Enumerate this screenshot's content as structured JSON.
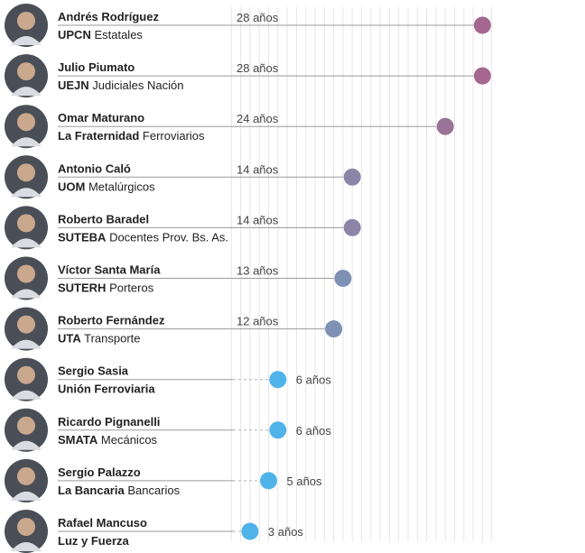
{
  "chart_data": {
    "type": "dot-plot",
    "unit_label": "años",
    "rows": [
      {
        "name": "Andrés Rodríguez",
        "union": "UPCN",
        "sector": "Estatales",
        "years": 28,
        "years_label": "28 años",
        "color": "#a5668f"
      },
      {
        "name": "Julio Piumato",
        "union": "UEJN",
        "sector": "Judiciales Nación",
        "years": 28,
        "years_label": "28 años",
        "color": "#a5668f"
      },
      {
        "name": "Omar Maturano",
        "union": "La Fraternidad",
        "sector": "Ferroviarios",
        "years": 24,
        "years_label": "24 años",
        "color": "#9a7398"
      },
      {
        "name": "Antonio Caló",
        "union": "UOM",
        "sector": "Metalúrgicos",
        "years": 14,
        "years_label": "14 años",
        "color": "#8d85a8"
      },
      {
        "name": "Roberto Baradel",
        "union": "SUTEBA",
        "sector": "Docentes Prov. Bs. As.",
        "years": 14,
        "years_label": "14 años",
        "color": "#8d85a8"
      },
      {
        "name": "Víctor Santa María",
        "union": "SUTERH",
        "sector": "Porteros",
        "years": 13,
        "years_label": "13 años",
        "color": "#7e91b4"
      },
      {
        "name": "Roberto Fernández",
        "union": "UTA",
        "sector": "Transporte",
        "years": 12,
        "years_label": "12 años",
        "color": "#7e91b4"
      },
      {
        "name": "Sergio Sasia",
        "union": "Unión Ferroviaria",
        "sector": "",
        "years": 6,
        "years_label": "6 años",
        "color": "#4fb3ea"
      },
      {
        "name": "Ricardo Pignanelli",
        "union": "SMATA",
        "sector": "Mecánicos",
        "years": 6,
        "years_label": "6 años",
        "color": "#4fb3ea"
      },
      {
        "name": "Sergio Palazzo",
        "union": "La Bancaria",
        "sector": "Bancarios",
        "years": 5,
        "years_label": "5 años",
        "color": "#4fb3ea"
      },
      {
        "name": "Rafael Mancuso",
        "union": "Luz y Fuerza",
        "sector": "",
        "years": 3,
        "years_label": "3 años",
        "color": "#4fb3ea"
      }
    ]
  }
}
